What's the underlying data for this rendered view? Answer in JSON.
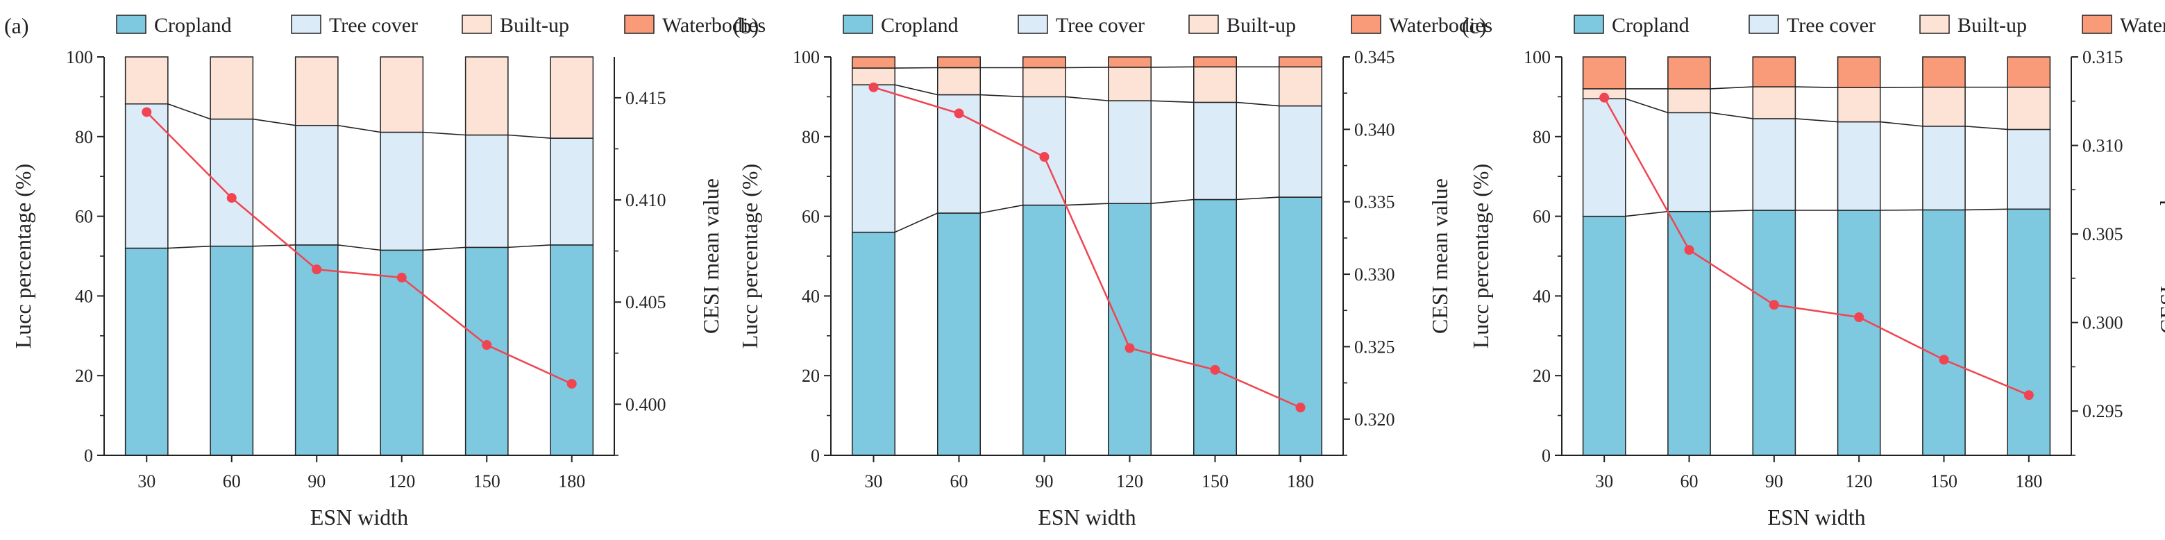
{
  "colors": {
    "cropland": "#7ec8e0",
    "tree_cover": "#dcebf8",
    "built_up": "#fde3d6",
    "waterbodies": "#f99a78",
    "cesi_line": "#f04550",
    "axis": "#222222"
  },
  "legend_labels": [
    "Cropland",
    "Tree cover",
    "Built-up",
    "Waterbodies"
  ],
  "chart_data": [
    {
      "type": "bar",
      "panel_label": "(a)",
      "xlabel": "ESN width",
      "ylabel": "Lucc percentage (%)",
      "y2label": "CESI mean value",
      "categories": [
        "30",
        "60",
        "90",
        "120",
        "150",
        "180"
      ],
      "ylim": [
        0,
        100
      ],
      "yticks": [
        "0",
        "20",
        "40",
        "60",
        "80",
        "100"
      ],
      "y2lim": [
        0.3975,
        0.417
      ],
      "y2ticks": [
        "0.400",
        "0.405",
        "0.410",
        "0.415"
      ],
      "stacked": true,
      "series": [
        {
          "name": "Cropland",
          "values": [
            52.0,
            52.5,
            52.8,
            51.5,
            52.2,
            52.8
          ]
        },
        {
          "name": "Tree cover",
          "values": [
            36.2,
            31.9,
            30.0,
            29.6,
            28.2,
            26.8
          ]
        },
        {
          "name": "Built-up",
          "values": [
            11.8,
            15.6,
            17.2,
            18.9,
            19.6,
            20.4
          ]
        },
        {
          "name": "Waterbodies",
          "values": [
            0,
            0,
            0,
            0,
            0,
            0
          ]
        }
      ],
      "line": {
        "name": "CESI mean value",
        "axis": "right",
        "values": [
          0.4143,
          0.4101,
          0.4066,
          0.4062,
          0.4029,
          0.401
        ]
      }
    },
    {
      "type": "bar",
      "panel_label": "(b)",
      "xlabel": "ESN width",
      "ylabel": "Lucc percentage (%)",
      "y2label": "CESI mean value",
      "categories": [
        "30",
        "60",
        "90",
        "120",
        "150",
        "180"
      ],
      "ylim": [
        0,
        100
      ],
      "yticks": [
        "0",
        "20",
        "40",
        "60",
        "80",
        "100"
      ],
      "y2lim": [
        0.3175,
        0.345
      ],
      "y2ticks": [
        "0.320",
        "0.325",
        "0.330",
        "0.335",
        "0.340",
        "0.345"
      ],
      "stacked": true,
      "series": [
        {
          "name": "Cropland",
          "values": [
            56.0,
            60.8,
            62.8,
            63.2,
            64.2,
            64.8
          ]
        },
        {
          "name": "Tree cover",
          "values": [
            37.0,
            29.7,
            27.2,
            25.8,
            24.4,
            22.9
          ]
        },
        {
          "name": "Built-up",
          "values": [
            4.2,
            6.8,
            7.3,
            8.4,
            8.9,
            9.8
          ]
        },
        {
          "name": "Waterbodies",
          "values": [
            2.8,
            2.7,
            2.7,
            2.6,
            2.5,
            2.5
          ]
        }
      ],
      "line": {
        "name": "CESI mean value",
        "axis": "right",
        "values": [
          0.3429,
          0.3411,
          0.3381,
          0.3249,
          0.3234,
          0.3208
        ]
      }
    },
    {
      "type": "bar",
      "panel_label": "(c)",
      "xlabel": "ESN width",
      "ylabel": "Lucc percentage (%)",
      "y2label": "CESI mean value",
      "categories": [
        "30",
        "60",
        "90",
        "120",
        "150",
        "180"
      ],
      "ylim": [
        0,
        100
      ],
      "yticks": [
        "0",
        "20",
        "40",
        "60",
        "80",
        "100"
      ],
      "y2lim": [
        0.2925,
        0.315
      ],
      "y2ticks": [
        "0.295",
        "0.300",
        "0.305",
        "0.310",
        "0.315"
      ],
      "stacked": true,
      "series": [
        {
          "name": "Cropland",
          "values": [
            60.0,
            61.2,
            61.5,
            61.5,
            61.6,
            61.8
          ]
        },
        {
          "name": "Tree cover",
          "values": [
            29.5,
            24.8,
            23.0,
            22.2,
            21.0,
            20.0
          ]
        },
        {
          "name": "Built-up",
          "values": [
            2.5,
            6.0,
            8.0,
            8.6,
            9.8,
            10.6
          ]
        },
        {
          "name": "Waterbodies",
          "values": [
            8.0,
            8.0,
            7.5,
            7.7,
            7.6,
            7.6
          ]
        }
      ],
      "line": {
        "name": "CESI mean value",
        "axis": "right",
        "values": [
          0.3127,
          0.3041,
          0.301,
          0.3003,
          0.2979,
          0.2959
        ]
      }
    }
  ]
}
